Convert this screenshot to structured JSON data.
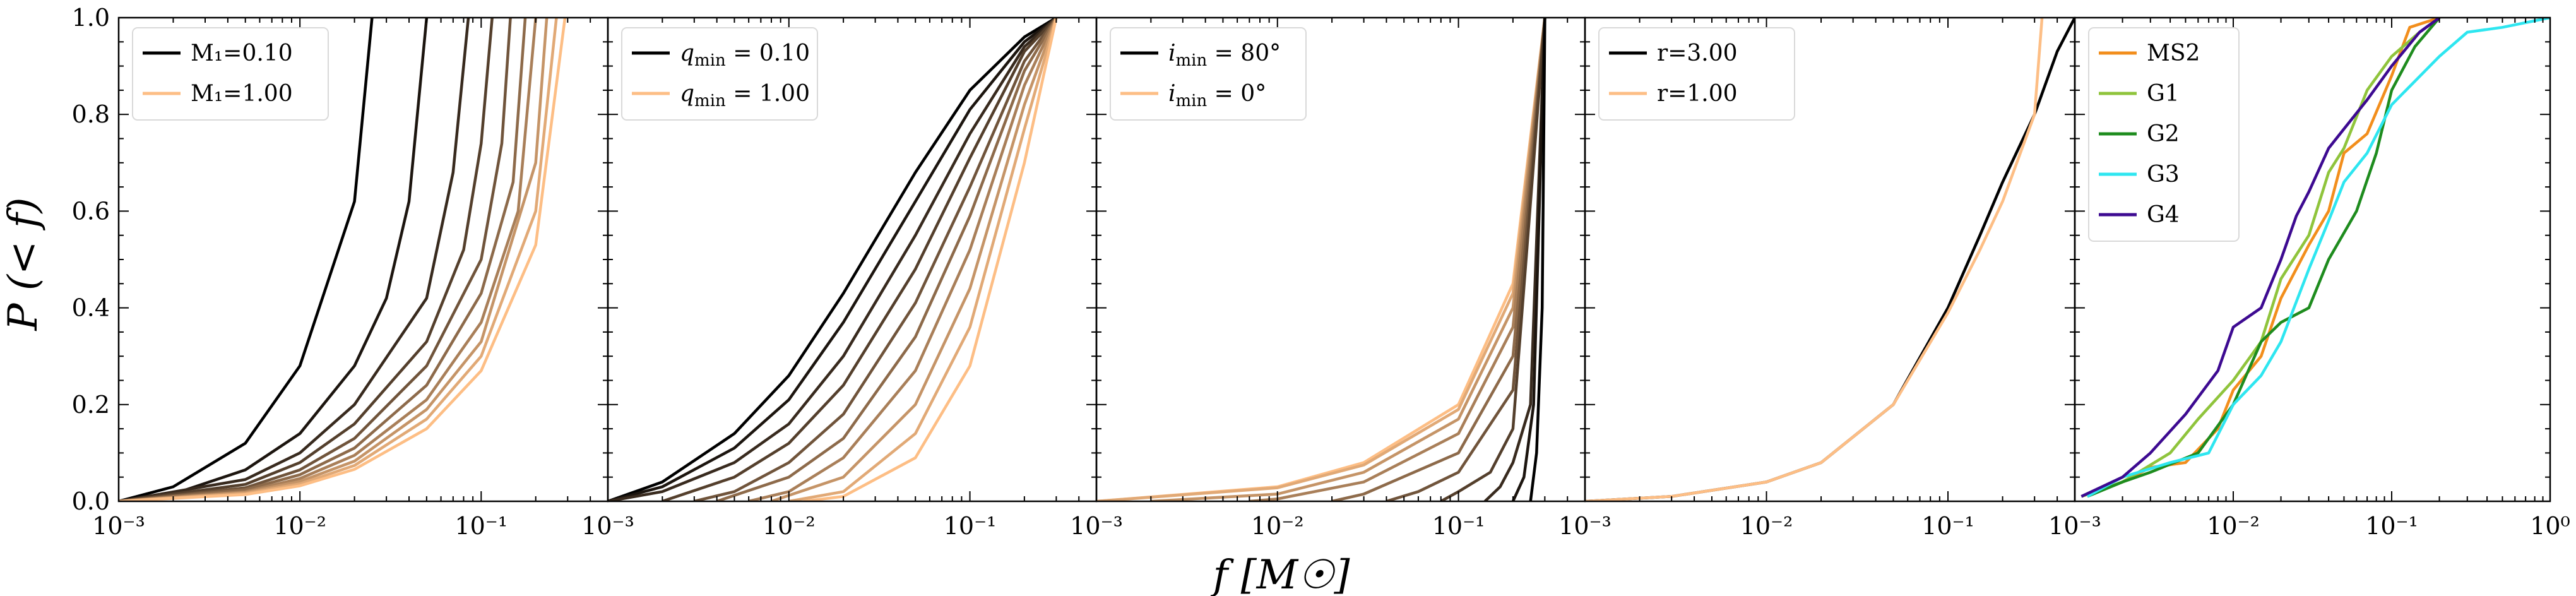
{
  "figure": {
    "ylabel": "P (< f)",
    "xlabel": "f [M☉]"
  },
  "chart_data": [
    {
      "type": "line",
      "panel": 1,
      "xscale": "log",
      "xlim": [
        0.001,
        0.5
      ],
      "ylim": [
        0,
        1
      ],
      "xticks": [
        "10⁻³",
        "10⁻²",
        "10⁻¹"
      ],
      "yticks": [
        "0.0",
        "0.2",
        "0.4",
        "0.6",
        "0.8",
        "1.0"
      ],
      "legend_position": "top-left",
      "legend": [
        {
          "label": "M₁=0.10",
          "color": "#000000"
        },
        {
          "label": "M₁=1.00",
          "color": "#FDBE85"
        }
      ],
      "curve_family": {
        "parameter": "M₁",
        "from": 0.1,
        "to": 1.0,
        "count": 10,
        "color_from": "#000000",
        "color_to": "#FDBE85"
      },
      "series": [
        {
          "name": "M₁=0.10",
          "x": [
            0.001,
            0.002,
            0.005,
            0.01,
            0.02,
            0.025
          ],
          "y": [
            0.0,
            0.03,
            0.12,
            0.28,
            0.62,
            1.0
          ]
        },
        {
          "name": "M₁=0.20",
          "x": [
            0.001,
            0.002,
            0.005,
            0.01,
            0.02,
            0.03,
            0.04,
            0.05
          ],
          "y": [
            0.0,
            0.015,
            0.065,
            0.14,
            0.28,
            0.42,
            0.62,
            1.0
          ]
        },
        {
          "name": "M₁=0.30",
          "x": [
            0.001,
            0.005,
            0.01,
            0.02,
            0.05,
            0.07,
            0.085
          ],
          "y": [
            0.0,
            0.045,
            0.1,
            0.2,
            0.42,
            0.68,
            1.0
          ]
        },
        {
          "name": "M₁=0.40",
          "x": [
            0.001,
            0.005,
            0.01,
            0.02,
            0.05,
            0.08,
            0.1,
            0.115
          ],
          "y": [
            0.0,
            0.035,
            0.08,
            0.16,
            0.33,
            0.52,
            0.74,
            1.0
          ]
        },
        {
          "name": "M₁=0.50",
          "x": [
            0.001,
            0.005,
            0.01,
            0.02,
            0.05,
            0.1,
            0.13,
            0.145
          ],
          "y": [
            0.0,
            0.028,
            0.065,
            0.13,
            0.28,
            0.5,
            0.74,
            1.0
          ]
        },
        {
          "name": "M₁=0.60",
          "x": [
            0.001,
            0.005,
            0.01,
            0.02,
            0.05,
            0.1,
            0.15,
            0.175
          ],
          "y": [
            0.0,
            0.024,
            0.055,
            0.11,
            0.24,
            0.43,
            0.66,
            1.0
          ]
        },
        {
          "name": "M₁=0.70",
          "x": [
            0.001,
            0.005,
            0.01,
            0.02,
            0.05,
            0.1,
            0.16,
            0.2
          ],
          "y": [
            0.0,
            0.02,
            0.047,
            0.095,
            0.21,
            0.37,
            0.6,
            1.0
          ]
        },
        {
          "name": "M₁=0.80",
          "x": [
            0.001,
            0.005,
            0.01,
            0.02,
            0.05,
            0.1,
            0.2,
            0.23
          ],
          "y": [
            0.0,
            0.018,
            0.041,
            0.083,
            0.19,
            0.33,
            0.7,
            1.0
          ]
        },
        {
          "name": "M₁=0.90",
          "x": [
            0.001,
            0.005,
            0.01,
            0.02,
            0.05,
            0.1,
            0.2,
            0.26
          ],
          "y": [
            0.0,
            0.016,
            0.036,
            0.074,
            0.17,
            0.3,
            0.6,
            1.0
          ]
        },
        {
          "name": "M₁=1.00",
          "x": [
            0.001,
            0.005,
            0.01,
            0.02,
            0.05,
            0.1,
            0.2,
            0.29
          ],
          "y": [
            0.0,
            0.014,
            0.032,
            0.066,
            0.15,
            0.27,
            0.53,
            1.0
          ]
        }
      ]
    },
    {
      "type": "line",
      "panel": 2,
      "xscale": "log",
      "xlim": [
        0.001,
        0.5
      ],
      "ylim": [
        0,
        1
      ],
      "xticks": [
        "10⁻³",
        "10⁻²",
        "10⁻¹"
      ],
      "legend_position": "top-left",
      "legend": [
        {
          "label": "q_min = 0.10",
          "color": "#000000"
        },
        {
          "label": "q_min = 1.00",
          "color": "#FDBE85"
        }
      ],
      "curve_family": {
        "parameter": "q_min",
        "from": 0.1,
        "to": 1.0,
        "count": 10,
        "color_from": "#000000",
        "color_to": "#FDBE85"
      },
      "series": [
        {
          "name": "q_min=0.10",
          "x": [
            0.001,
            0.002,
            0.005,
            0.01,
            0.02,
            0.05,
            0.1,
            0.2,
            0.3
          ],
          "y": [
            0.0,
            0.04,
            0.14,
            0.26,
            0.43,
            0.68,
            0.85,
            0.96,
            1.0
          ]
        },
        {
          "name": "q_min=0.20",
          "x": [
            0.001,
            0.002,
            0.005,
            0.01,
            0.02,
            0.05,
            0.1,
            0.2,
            0.3
          ],
          "y": [
            0.0,
            0.03,
            0.11,
            0.21,
            0.37,
            0.62,
            0.81,
            0.95,
            1.0
          ]
        },
        {
          "name": "q_min=0.30",
          "x": [
            0.001,
            0.002,
            0.005,
            0.01,
            0.02,
            0.05,
            0.1,
            0.2,
            0.3
          ],
          "y": [
            0.0,
            0.02,
            0.08,
            0.16,
            0.3,
            0.55,
            0.76,
            0.94,
            1.0
          ]
        },
        {
          "name": "q_min=0.40",
          "x": [
            0.002,
            0.005,
            0.01,
            0.02,
            0.05,
            0.1,
            0.2,
            0.3
          ],
          "y": [
            0.0,
            0.05,
            0.12,
            0.24,
            0.48,
            0.71,
            0.93,
            1.0
          ]
        },
        {
          "name": "q_min=0.50",
          "x": [
            0.003,
            0.005,
            0.01,
            0.02,
            0.05,
            0.1,
            0.2,
            0.3
          ],
          "y": [
            0.0,
            0.02,
            0.08,
            0.18,
            0.41,
            0.65,
            0.91,
            1.0
          ]
        },
        {
          "name": "q_min=0.60",
          "x": [
            0.004,
            0.01,
            0.02,
            0.05,
            0.1,
            0.2,
            0.3
          ],
          "y": [
            0.0,
            0.05,
            0.13,
            0.34,
            0.59,
            0.89,
            1.0
          ]
        },
        {
          "name": "q_min=0.70",
          "x": [
            0.006,
            0.01,
            0.02,
            0.05,
            0.1,
            0.2,
            0.3
          ],
          "y": [
            0.0,
            0.02,
            0.09,
            0.27,
            0.52,
            0.86,
            1.0
          ]
        },
        {
          "name": "q_min=0.80",
          "x": [
            0.008,
            0.02,
            0.05,
            0.1,
            0.2,
            0.3
          ],
          "y": [
            0.0,
            0.05,
            0.2,
            0.44,
            0.82,
            1.0
          ]
        },
        {
          "name": "q_min=0.90",
          "x": [
            0.01,
            0.02,
            0.05,
            0.1,
            0.2,
            0.3
          ],
          "y": [
            0.0,
            0.02,
            0.14,
            0.36,
            0.77,
            1.0
          ]
        },
        {
          "name": "q_min=1.00",
          "x": [
            0.012,
            0.02,
            0.05,
            0.1,
            0.2,
            0.3
          ],
          "y": [
            0.0,
            0.01,
            0.09,
            0.28,
            0.7,
            1.0
          ]
        }
      ]
    },
    {
      "type": "line",
      "panel": 3,
      "xscale": "log",
      "xlim": [
        0.001,
        0.5
      ],
      "ylim": [
        0,
        1
      ],
      "xticks": [
        "10⁻³",
        "10⁻²",
        "10⁻¹"
      ],
      "legend_position": "top-left",
      "legend": [
        {
          "label": "i_min = 80°",
          "color": "#000000"
        },
        {
          "label": "i_min = 0°",
          "color": "#FDBE85"
        }
      ],
      "curve_family": {
        "parameter": "i_min",
        "from": 80,
        "to": 0,
        "count": 10,
        "color_from": "#000000",
        "color_to": "#FDBE85"
      },
      "series": [
        {
          "name": "i_min=0°",
          "x": [
            0.001,
            0.01,
            0.03,
            0.1,
            0.2,
            0.3
          ],
          "y": [
            0.0,
            0.03,
            0.08,
            0.2,
            0.45,
            1.0
          ]
        },
        {
          "name": "i_min=10°",
          "x": [
            0.001,
            0.01,
            0.03,
            0.1,
            0.2,
            0.3
          ],
          "y": [
            0.0,
            0.028,
            0.075,
            0.19,
            0.43,
            1.0
          ]
        },
        {
          "name": "i_min=20°",
          "x": [
            0.002,
            0.01,
            0.03,
            0.1,
            0.2,
            0.3
          ],
          "y": [
            0.0,
            0.015,
            0.06,
            0.17,
            0.4,
            1.0
          ]
        },
        {
          "name": "i_min=30°",
          "x": [
            0.007,
            0.01,
            0.03,
            0.1,
            0.2,
            0.3
          ],
          "y": [
            0.0,
            0.005,
            0.04,
            0.14,
            0.36,
            1.0
          ]
        },
        {
          "name": "i_min=40°",
          "x": [
            0.02,
            0.03,
            0.1,
            0.2,
            0.3
          ],
          "y": [
            0.0,
            0.015,
            0.1,
            0.3,
            1.0
          ]
        },
        {
          "name": "i_min=50°",
          "x": [
            0.04,
            0.06,
            0.1,
            0.2,
            0.3
          ],
          "y": [
            0.0,
            0.02,
            0.06,
            0.23,
            1.0
          ]
        },
        {
          "name": "i_min=60°",
          "x": [
            0.08,
            0.1,
            0.15,
            0.2,
            0.3
          ],
          "y": [
            0.0,
            0.02,
            0.06,
            0.15,
            1.0
          ]
        },
        {
          "name": "i_min=70°",
          "x": [
            0.14,
            0.17,
            0.2,
            0.25,
            0.3
          ],
          "y": [
            0.0,
            0.03,
            0.08,
            0.2,
            1.0
          ]
        },
        {
          "name": "i_min=75°",
          "x": [
            0.2,
            0.23,
            0.26,
            0.3
          ],
          "y": [
            0.0,
            0.05,
            0.2,
            1.0
          ]
        },
        {
          "name": "i_min=80°",
          "x": [
            0.25,
            0.27,
            0.29,
            0.3
          ],
          "y": [
            0.0,
            0.1,
            0.4,
            1.0
          ]
        }
      ]
    },
    {
      "type": "line",
      "panel": 4,
      "xscale": "log",
      "xlim": [
        0.001,
        0.5
      ],
      "ylim": [
        0,
        1
      ],
      "xticks": [
        "10⁻³",
        "10⁻²",
        "10⁻¹"
      ],
      "legend_position": "top-left",
      "legend": [
        {
          "label": "r=3.00",
          "color": "#000000"
        },
        {
          "label": "r=1.00",
          "color": "#FDBE85"
        }
      ],
      "curve_family": {
        "parameter": "r",
        "from": 3.0,
        "to": 1.0,
        "count": 10,
        "color_from": "#000000",
        "color_to": "#FDBE85"
      },
      "series": [
        {
          "name": "r=3.00",
          "x": [
            0.001,
            0.003,
            0.01,
            0.02,
            0.05,
            0.1,
            0.15,
            0.2,
            0.3,
            0.4,
            0.5
          ],
          "y": [
            0.0,
            0.01,
            0.04,
            0.08,
            0.2,
            0.4,
            0.55,
            0.66,
            0.8,
            0.93,
            1.0
          ]
        },
        {
          "name": "r=1.00",
          "x": [
            0.001,
            0.003,
            0.01,
            0.02,
            0.05,
            0.1,
            0.15,
            0.2,
            0.3,
            0.33
          ],
          "y": [
            0.0,
            0.01,
            0.04,
            0.08,
            0.2,
            0.39,
            0.52,
            0.62,
            0.8,
            1.0
          ]
        }
      ]
    },
    {
      "type": "line",
      "panel": 5,
      "xscale": "log",
      "xlim": [
        0.001,
        1
      ],
      "ylim": [
        0,
        1
      ],
      "xticks": [
        "10⁻³",
        "10⁻²",
        "10⁻¹",
        "10⁰"
      ],
      "legend_position": "top-left",
      "legend": [
        {
          "label": "MS2",
          "color": "#F28E1C"
        },
        {
          "label": "G1",
          "color": "#8FC43C"
        },
        {
          "label": "G2",
          "color": "#1E8C1E"
        },
        {
          "label": "G3",
          "color": "#2EE6F0"
        },
        {
          "label": "G4",
          "color": "#3D0A91"
        }
      ],
      "series": [
        {
          "name": "MS2",
          "x": [
            0.0011,
            0.002,
            0.003,
            0.005,
            0.008,
            0.01,
            0.015,
            0.02,
            0.03,
            0.04,
            0.05,
            0.07,
            0.1,
            0.13,
            0.2
          ],
          "y": [
            0.01,
            0.04,
            0.07,
            0.08,
            0.15,
            0.23,
            0.3,
            0.42,
            0.53,
            0.6,
            0.72,
            0.76,
            0.88,
            0.98,
            1.0
          ]
        },
        {
          "name": "G1",
          "x": [
            0.0011,
            0.002,
            0.004,
            0.006,
            0.01,
            0.015,
            0.02,
            0.03,
            0.04,
            0.05,
            0.07,
            0.1,
            0.15,
            0.2
          ],
          "y": [
            0.01,
            0.04,
            0.1,
            0.17,
            0.25,
            0.33,
            0.46,
            0.55,
            0.68,
            0.73,
            0.85,
            0.92,
            0.97,
            1.0
          ]
        },
        {
          "name": "G2",
          "x": [
            0.0012,
            0.002,
            0.003,
            0.006,
            0.01,
            0.015,
            0.02,
            0.03,
            0.04,
            0.06,
            0.08,
            0.1,
            0.14,
            0.2
          ],
          "y": [
            0.01,
            0.04,
            0.06,
            0.1,
            0.2,
            0.33,
            0.37,
            0.4,
            0.5,
            0.6,
            0.72,
            0.85,
            0.94,
            1.0
          ]
        },
        {
          "name": "G3",
          "x": [
            0.0012,
            0.002,
            0.004,
            0.007,
            0.01,
            0.015,
            0.02,
            0.03,
            0.04,
            0.05,
            0.07,
            0.1,
            0.2,
            0.3,
            0.5,
            1.0
          ],
          "y": [
            0.01,
            0.05,
            0.08,
            0.1,
            0.2,
            0.26,
            0.33,
            0.48,
            0.58,
            0.66,
            0.72,
            0.82,
            0.92,
            0.97,
            0.98,
            1.0
          ]
        },
        {
          "name": "G4",
          "x": [
            0.0011,
            0.002,
            0.003,
            0.005,
            0.008,
            0.01,
            0.015,
            0.02,
            0.025,
            0.03,
            0.04,
            0.05,
            0.07,
            0.1,
            0.15,
            0.2
          ],
          "y": [
            0.01,
            0.05,
            0.1,
            0.18,
            0.27,
            0.36,
            0.4,
            0.5,
            0.59,
            0.64,
            0.73,
            0.77,
            0.83,
            0.9,
            0.97,
            1.0
          ]
        }
      ]
    }
  ]
}
